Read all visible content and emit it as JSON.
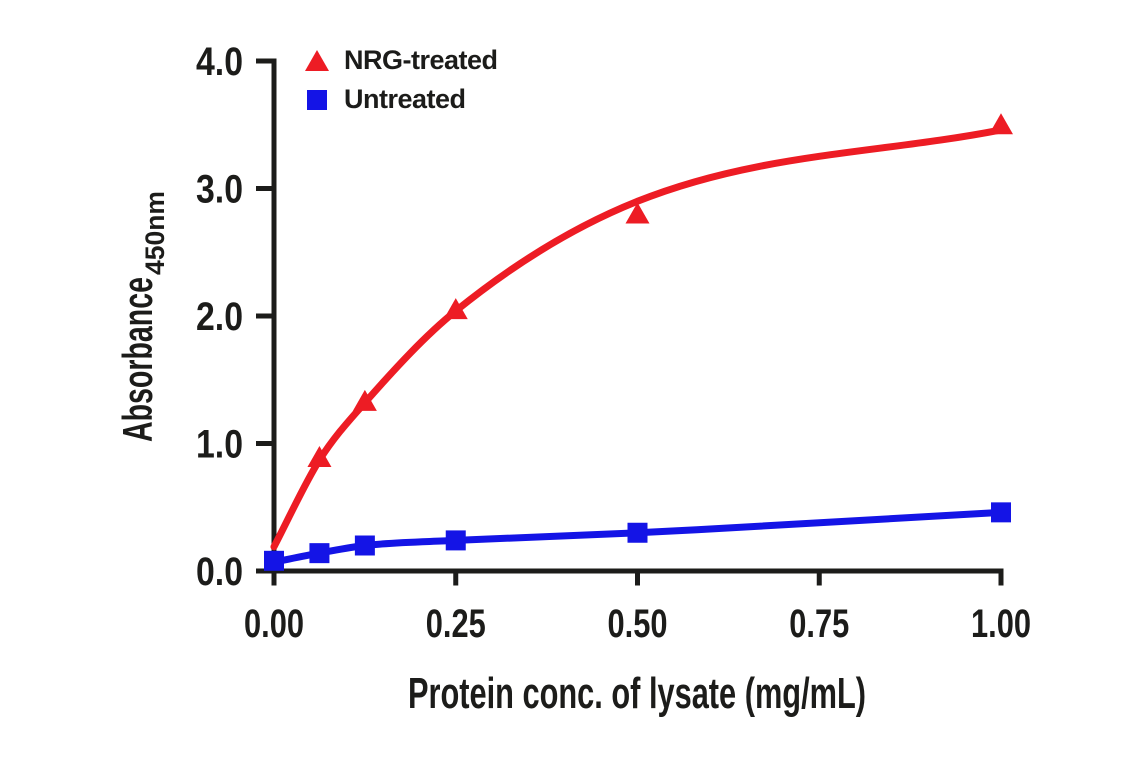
{
  "figure": {
    "background_color": "#ffffff",
    "ink_color": "#1c1c1a"
  },
  "legend": {
    "position": "top-left",
    "items": [
      {
        "label": "NRG-treated",
        "marker": "triangle",
        "color": "#ED1C24"
      },
      {
        "label": "Untreated",
        "marker": "square",
        "color": "#1414E6"
      }
    ]
  },
  "axes": {
    "x": {
      "title": "Protein conc. of lysate (mg/mL)",
      "ticks": [
        {
          "value": 0,
          "label": "0.00"
        },
        {
          "value": 0.25,
          "label": "0.25"
        },
        {
          "value": 0.5,
          "label": "0.50"
        },
        {
          "value": 0.75,
          "label": "0.75"
        },
        {
          "value": 1,
          "label": "1.00"
        }
      ]
    },
    "y": {
      "title_main": "Absorbance",
      "title_sub": "450nm",
      "ticks": [
        {
          "value": 0,
          "label": "0.0"
        },
        {
          "value": 1,
          "label": "1.0"
        },
        {
          "value": 2,
          "label": "2.0"
        },
        {
          "value": 3,
          "label": "3.0"
        },
        {
          "value": 4,
          "label": "4.0"
        }
      ]
    }
  },
  "chart_data": {
    "type": "line",
    "title": "",
    "xlabel": "Protein conc. of lysate (mg/mL)",
    "ylabel": "Absorbance 450nm",
    "xlim": [
      0,
      1
    ],
    "ylim": [
      0,
      4
    ],
    "grid": false,
    "legend_position": "top-left-inside",
    "series": [
      {
        "name": "NRG-treated",
        "color": "#ED1C24",
        "marker": "triangle",
        "points": [
          [
            0.0625,
            0.89
          ],
          [
            0.125,
            1.33
          ],
          [
            0.25,
            2.05
          ],
          [
            0.5,
            2.8
          ],
          [
            1.0,
            3.5
          ]
        ],
        "curve": [
          [
            0,
            0.19
          ],
          [
            0.0625,
            0.87
          ],
          [
            0.125,
            1.32
          ],
          [
            0.25,
            2.04
          ],
          [
            0.5,
            2.9
          ],
          [
            1.0,
            3.46
          ]
        ]
      },
      {
        "name": "Untreated",
        "color": "#1414E6",
        "marker": "square",
        "points": [
          [
            0,
            0.08
          ],
          [
            0.0625,
            0.14
          ],
          [
            0.125,
            0.2
          ],
          [
            0.25,
            0.24
          ],
          [
            0.5,
            0.3
          ],
          [
            1.0,
            0.46
          ]
        ],
        "curve": [
          [
            0,
            0.07
          ],
          [
            0.0625,
            0.14
          ],
          [
            0.125,
            0.2
          ],
          [
            0.25,
            0.24
          ],
          [
            0.5,
            0.3
          ],
          [
            1.0,
            0.46
          ]
        ]
      }
    ]
  }
}
